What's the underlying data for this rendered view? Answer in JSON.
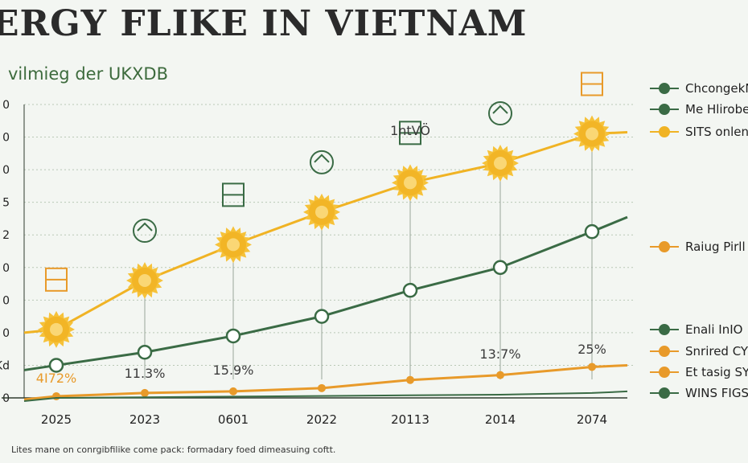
{
  "header": {
    "title": "ERGY FLIKE IN VIETNAM",
    "subtitle": "vilmieg der UKXDB"
  },
  "footnote": "Lites mane on conrgibfilike come pack: formadary foed dimeasuing coftt.",
  "colors": {
    "gold": "#f0b324",
    "orange": "#e89a2a",
    "green": "#3a6b45",
    "grid": "#b9c8b6"
  },
  "legend": [
    {
      "label": "ChcongekN",
      "color": "#3a6b45",
      "group": "top"
    },
    {
      "label": "Me Hlirobe",
      "color": "#3a6b45",
      "group": "top"
    },
    {
      "label": "SITS onlen",
      "color": "#f0b324",
      "group": "top"
    },
    {
      "label": "Raiug Pirll",
      "color": "#e89a2a",
      "group": "middle"
    },
    {
      "label": "Enali InIO",
      "color": "#3a6b45",
      "group": "bottom"
    },
    {
      "label": "Snrired CY",
      "color": "#e89a2a",
      "group": "bottom"
    },
    {
      "label": "Et tasig SYS",
      "color": "#e89a2a",
      "group": "bottom"
    },
    {
      "label": "WINS FIGS",
      "color": "#3a6b45",
      "group": "bottom"
    }
  ],
  "chart_data": {
    "type": "line",
    "categories": [
      "2025",
      "2023",
      "0601",
      "2022",
      "20113",
      "2014",
      "2074"
    ],
    "y_ticks": [
      "0",
      "Kd",
      "0",
      "0",
      "0",
      "2",
      "5",
      "0",
      "0",
      "0"
    ],
    "ylim": [
      0,
      9
    ],
    "grid": true,
    "legend_position": "right",
    "series": [
      {
        "name": "SITS onlen",
        "color": "#f0b324",
        "marker": "sun",
        "values": [
          2.1,
          3.6,
          4.7,
          5.7,
          6.6,
          7.2,
          8.1
        ]
      },
      {
        "name": "ChcongekN",
        "color": "#3a6b45",
        "marker": "ring",
        "values": [
          1.0,
          1.4,
          1.9,
          2.5,
          3.3,
          4.0,
          5.1
        ]
      },
      {
        "name": "Snrired CY",
        "color": "#e89a2a",
        "marker": "dot",
        "values": [
          0.05,
          0.15,
          0.2,
          0.3,
          0.55,
          0.7,
          0.95
        ]
      },
      {
        "name": "WINS FIGS",
        "color": "#3a6b45",
        "marker": "none",
        "values": [
          0.0,
          0.02,
          0.04,
          0.06,
          0.08,
          0.1,
          0.15
        ]
      }
    ],
    "data_labels": [
      {
        "text": "4I72%",
        "category_index": 0,
        "color": "#e89a2a"
      },
      {
        "text": "11.3%",
        "category_index": 1,
        "color": "#3b3b3b"
      },
      {
        "text": "15.9%",
        "category_index": 2,
        "color": "#3b3b3b"
      },
      {
        "text": "13:7%",
        "category_index": 5,
        "color": "#3b3b3b"
      },
      {
        "text": "25%",
        "category_index": 6,
        "color": "#3b3b3b"
      }
    ],
    "annotations": [
      {
        "text": "1ntVÖ",
        "category_index": 4
      }
    ]
  }
}
